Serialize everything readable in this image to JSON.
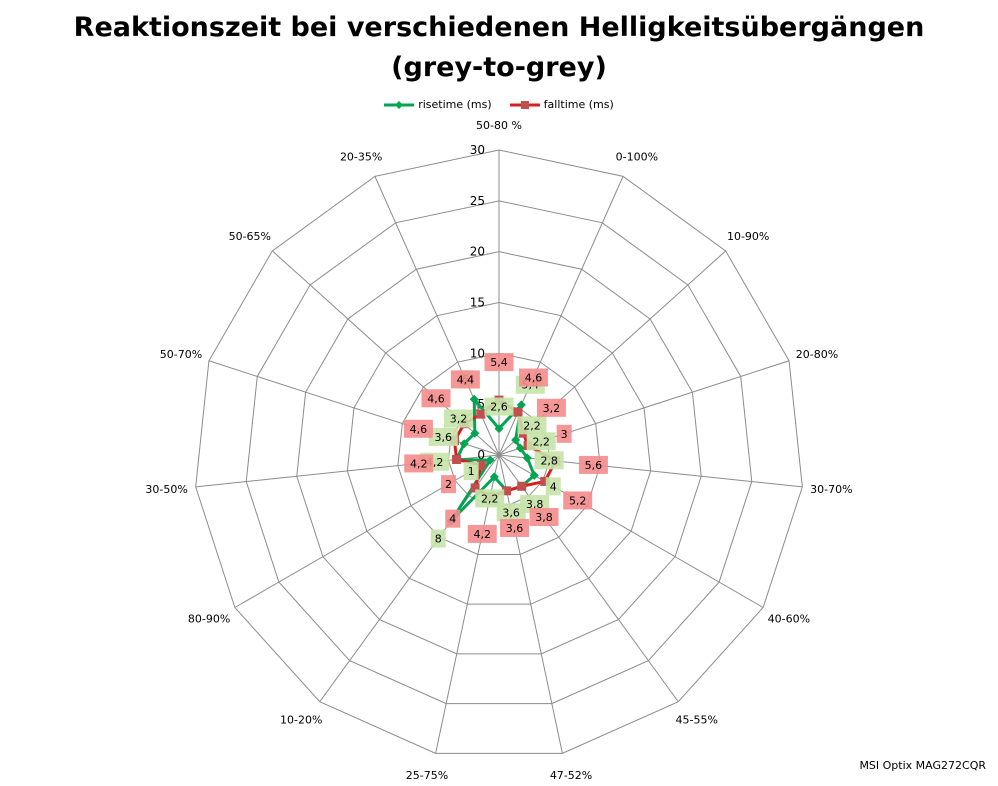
{
  "chart_data": {
    "type": "radar",
    "title": "Reaktionszeit bei verschiedenen Helligkeitsübergängen",
    "subtitle": "(grey-to-grey)",
    "categories": [
      "50-80 %",
      "0-100%",
      "10-90%",
      "20-80%",
      "30-70%",
      "40-60%",
      "45-55%",
      "47-52%",
      "25-75%",
      "10-20%",
      "80-90%",
      "30-50%",
      "50-70%",
      "50-65%",
      "20-35%"
    ],
    "ticks": [
      "0",
      "5",
      "10",
      "15",
      "20",
      "25",
      "30"
    ],
    "rmax": 30,
    "grid": true,
    "legend_position": "top",
    "series": [
      {
        "name": "risetime (ms)",
        "color": "#00a550",
        "marker": "diamond",
        "values": [
          2.6,
          5.4,
          2.2,
          2.2,
          2.8,
          4,
          3.8,
          3.6,
          2.2,
          8,
          1,
          4.2,
          3.6,
          3.2,
          6
        ],
        "labels": [
          "2,6",
          "5,4",
          "2,2",
          "2,2",
          "2,8",
          "4",
          "3,8",
          "3,6",
          "2,2",
          "8",
          "1",
          "4,2",
          "3,6",
          "3,2",
          "6"
        ],
        "label_bg": "#c5e3a8"
      },
      {
        "name": "falltime (ms)",
        "color": "#d62020",
        "marker": "square",
        "values": [
          5.4,
          4.6,
          3.2,
          3,
          5.6,
          5.2,
          3.8,
          3.6,
          4.2,
          4,
          2,
          4.2,
          4.6,
          4.6,
          4.4
        ],
        "labels": [
          "5,4",
          "4,6",
          "3,2",
          "3",
          "5,6",
          "5,2",
          "3,8",
          "3,6",
          "4,2",
          "4",
          "2",
          "4,2",
          "4,6",
          "4,6",
          "4,4"
        ],
        "label_bg": "#f48c8c"
      }
    ]
  },
  "footer": "MSI Optix MAG272CQR"
}
